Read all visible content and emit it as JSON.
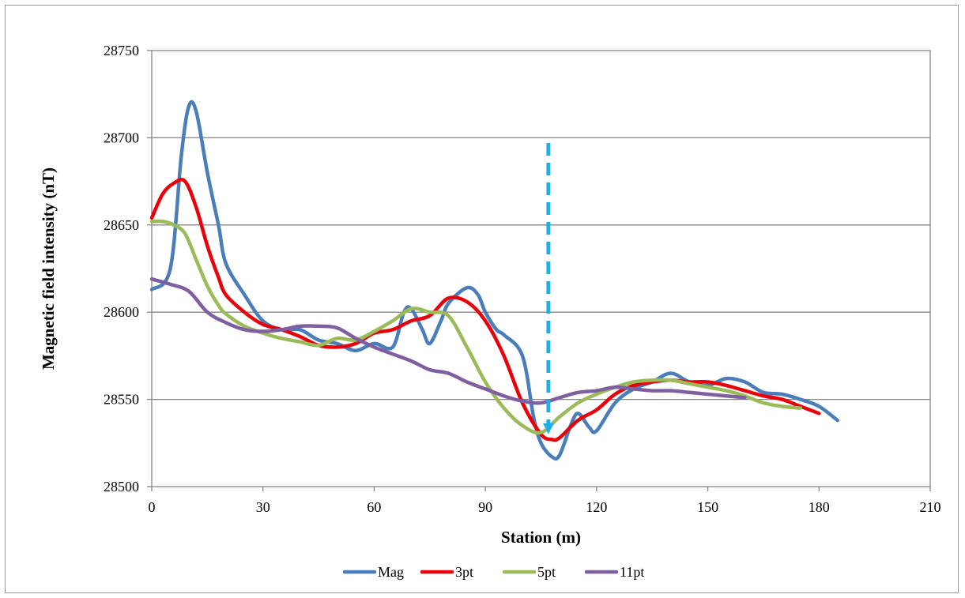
{
  "chart_data": {
    "type": "line",
    "title": "",
    "xlabel": "Station (m)",
    "ylabel": "Magnetic field intensity (nT)",
    "xlim": [
      0,
      210
    ],
    "ylim": [
      28500,
      28750
    ],
    "xticks": [
      0,
      30,
      60,
      90,
      120,
      150,
      180,
      210
    ],
    "yticks": [
      28500,
      28550,
      28600,
      28650,
      28700,
      28750
    ],
    "grid": "horizontal",
    "legend_position": "bottom",
    "series": [
      {
        "name": "Mag",
        "color": "#4a7ebb",
        "x": [
          0,
          5,
          8,
          10,
          12,
          15,
          18,
          20,
          25,
          30,
          35,
          40,
          45,
          50,
          55,
          60,
          65,
          68,
          70,
          73,
          75,
          78,
          80,
          85,
          88,
          90,
          93,
          95,
          100,
          103,
          105,
          108,
          110,
          113,
          115,
          118,
          120,
          125,
          130,
          135,
          140,
          145,
          150,
          155,
          160,
          165,
          170,
          175,
          180,
          185
        ],
        "y": [
          28613,
          28625,
          28690,
          28718,
          28715,
          28680,
          28650,
          28628,
          28610,
          28595,
          28590,
          28590,
          28584,
          28582,
          28578,
          28582,
          28580,
          28600,
          28602,
          28590,
          28582,
          28595,
          28605,
          28614,
          28610,
          28600,
          28590,
          28587,
          28575,
          28540,
          28525,
          28517,
          28518,
          28535,
          28542,
          28534,
          28532,
          28548,
          28556,
          28560,
          28565,
          28560,
          28558,
          28562,
          28560,
          28554,
          28553,
          28550,
          28546,
          28538
        ]
      },
      {
        "name": "3pt",
        "color": "#e8000b",
        "x": [
          0,
          3,
          6,
          9,
          12,
          15,
          18,
          20,
          25,
          30,
          35,
          40,
          45,
          50,
          55,
          60,
          65,
          70,
          75,
          80,
          85,
          90,
          95,
          100,
          105,
          108,
          110,
          115,
          120,
          125,
          130,
          135,
          140,
          145,
          150,
          155,
          160,
          165,
          170,
          175,
          180
        ],
        "y": [
          28654,
          28668,
          28674,
          28675,
          28660,
          28638,
          28620,
          28610,
          28600,
          28593,
          28590,
          28586,
          28581,
          28580,
          28582,
          28588,
          28590,
          28595,
          28598,
          28608,
          28606,
          28595,
          28575,
          28548,
          28530,
          28527,
          28528,
          28538,
          28544,
          28553,
          28558,
          28560,
          28561,
          28560,
          28560,
          28558,
          28555,
          28552,
          28550,
          28546,
          28542
        ]
      },
      {
        "name": "5pt",
        "color": "#9bbb59",
        "x": [
          0,
          3,
          6,
          9,
          12,
          15,
          18,
          20,
          25,
          30,
          35,
          40,
          45,
          50,
          55,
          60,
          65,
          70,
          75,
          80,
          85,
          90,
          95,
          100,
          105,
          110,
          115,
          120,
          125,
          130,
          135,
          140,
          145,
          150,
          155,
          160,
          165,
          170,
          175
        ],
        "y": [
          28652,
          28652,
          28650,
          28645,
          28630,
          28615,
          28604,
          28599,
          28592,
          28588,
          28585,
          28583,
          28581,
          28585,
          28584,
          28589,
          28595,
          28602,
          28600,
          28598,
          28580,
          28560,
          28545,
          28535,
          28531,
          28540,
          28548,
          28553,
          28557,
          28560,
          28561,
          28561,
          28559,
          28557,
          28555,
          28552,
          28548,
          28546,
          28545
        ]
      },
      {
        "name": "11pt",
        "color": "#7f5fa0",
        "x": [
          0,
          5,
          10,
          15,
          20,
          25,
          30,
          35,
          40,
          45,
          50,
          55,
          60,
          65,
          70,
          75,
          80,
          85,
          90,
          95,
          100,
          105,
          110,
          115,
          120,
          125,
          130,
          135,
          140,
          145,
          150,
          155,
          160
        ],
        "y": [
          28619,
          28616,
          28612,
          28600,
          28594,
          28590,
          28589,
          28590,
          28592,
          28592,
          28591,
          28585,
          28580,
          28576,
          28572,
          28567,
          28565,
          28560,
          28556,
          28552,
          28549,
          28548,
          28551,
          28554,
          28555,
          28557,
          28556,
          28555,
          28555,
          28554,
          28553,
          28552,
          28551
        ]
      }
    ],
    "annotation": {
      "type": "dashed-arrow",
      "color": "#1ab0e8",
      "x": 107,
      "y_from": 28697,
      "y_to": 28530
    }
  }
}
